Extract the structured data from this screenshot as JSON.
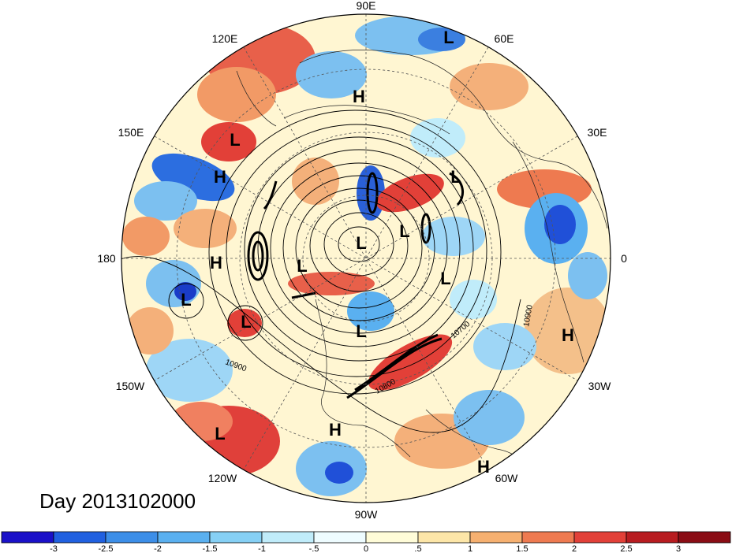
{
  "map": {
    "projection": "north-polar-stereographic",
    "longitude_labels": [
      "90E",
      "60E",
      "30E",
      "0",
      "30W",
      "60W",
      "90W",
      "120W",
      "150W",
      "180",
      "150E",
      "120E"
    ],
    "contour_labels": [
      "10900",
      "10900",
      "10700",
      "10800"
    ],
    "pressure_centers": [
      "L",
      "H",
      "L",
      "H",
      "H",
      "L",
      "L",
      "L",
      "L",
      "L",
      "L",
      "L",
      "L",
      "H",
      "H",
      "L",
      "H",
      "H"
    ],
    "colors": {
      "ocean_base": "#fdf8d8",
      "contour": "#000000",
      "grid": "#444444"
    }
  },
  "title": "Day 2013102000",
  "colorbar": {
    "tick_labels": [
      "-3",
      "-2.5",
      "-2",
      "-1.5",
      "-1",
      "-.5",
      "0",
      ".5",
      "1",
      "1.5",
      "2",
      "2.5",
      "3"
    ],
    "colors": [
      "#1a10c8",
      "#2060e0",
      "#3c8ee8",
      "#5ab0f0",
      "#86d0f5",
      "#c0ecfa",
      "#eefcff",
      "#fffcd8",
      "#fde6a8",
      "#f6b070",
      "#ee7a50",
      "#e24038",
      "#b81c20",
      "#8a0c14"
    ]
  }
}
